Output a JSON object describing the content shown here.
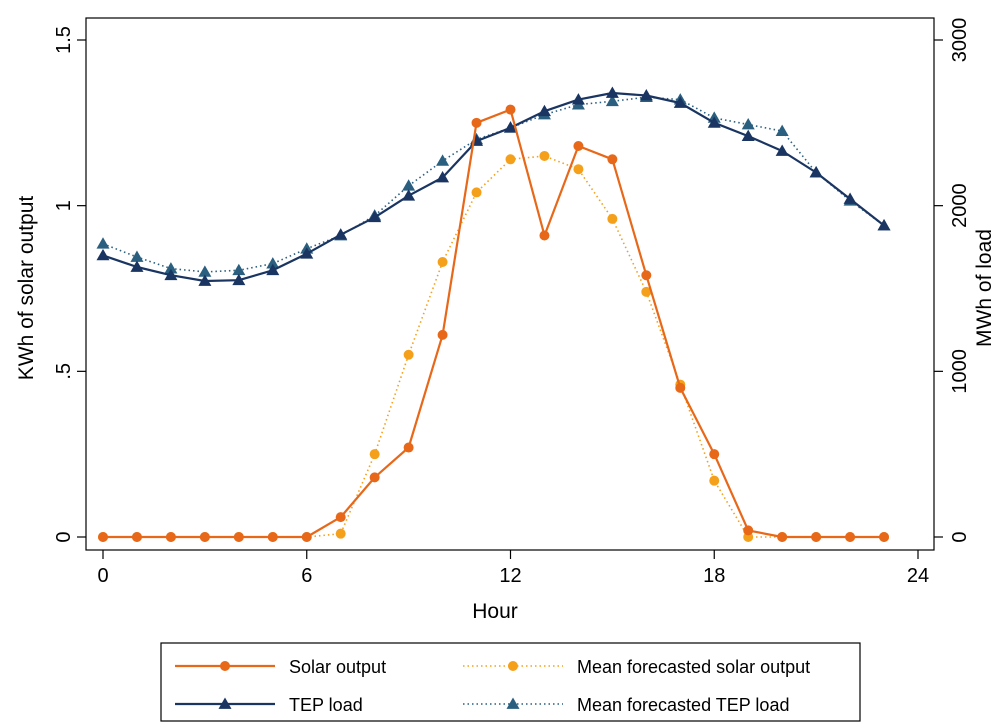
{
  "chart_data": {
    "type": "line",
    "title": "",
    "xlabel": "Hour",
    "ylabel_left": "KWh of solar output",
    "ylabel_right": "MWh of load",
    "xlim": [
      0,
      24
    ],
    "ylim_left": [
      0,
      1.5
    ],
    "ylim_right": [
      0,
      3000
    ],
    "x_ticks": [
      0,
      6,
      12,
      18,
      24
    ],
    "x_tick_labels": [
      "0",
      "6",
      "12",
      "18",
      "24"
    ],
    "y_left_ticks": [
      0,
      0.5,
      1,
      1.5
    ],
    "y_left_tick_labels": [
      "0",
      ".5",
      "1",
      "1.5"
    ],
    "y_right_ticks": [
      0,
      1000,
      2000,
      3000
    ],
    "y_right_tick_labels": [
      "0",
      "1000",
      "2000",
      "3000"
    ],
    "grid": false,
    "legend_position": "bottom",
    "x": [
      0,
      1,
      2,
      3,
      4,
      5,
      6,
      7,
      8,
      9,
      10,
      11,
      12,
      13,
      14,
      15,
      16,
      17,
      18,
      19,
      20,
      21,
      22,
      23
    ],
    "series": [
      {
        "name": "Solar output",
        "axis": "left",
        "style": "solid",
        "marker": "circle",
        "color": "#e8681a",
        "values": [
          0,
          0,
          0,
          0,
          0,
          0,
          0,
          0.06,
          0.18,
          0.27,
          0.61,
          1.25,
          1.29,
          0.91,
          1.18,
          1.14,
          0.79,
          0.45,
          0.25,
          0.02,
          0,
          0,
          0,
          0
        ]
      },
      {
        "name": "Mean forecasted solar output",
        "axis": "left",
        "style": "dotted",
        "marker": "circle",
        "color": "#f5a01a",
        "values": [
          0,
          0,
          0,
          0,
          0,
          0,
          0,
          0.01,
          0.25,
          0.55,
          0.83,
          1.04,
          1.14,
          1.15,
          1.11,
          0.96,
          0.74,
          0.46,
          0.17,
          0,
          0,
          0,
          0,
          0
        ]
      },
      {
        "name": "TEP load",
        "axis": "right",
        "style": "solid",
        "marker": "triangle",
        "color": "#1a3562",
        "values": [
          1700,
          1630,
          1580,
          1545,
          1550,
          1610,
          1710,
          1825,
          1930,
          2060,
          2170,
          2390,
          2470,
          2570,
          2640,
          2680,
          2665,
          2620,
          2500,
          2420,
          2330,
          2200,
          2040,
          1880
        ]
      },
      {
        "name": "Mean forecasted TEP load",
        "axis": "right",
        "style": "dotted",
        "marker": "triangle",
        "color": "#2a5f80",
        "values": [
          1770,
          1690,
          1620,
          1600,
          1610,
          1650,
          1740,
          1820,
          1940,
          2120,
          2270,
          2400,
          2470,
          2550,
          2610,
          2630,
          2655,
          2640,
          2530,
          2490,
          2450,
          2200,
          2030,
          1880
        ]
      }
    ]
  }
}
